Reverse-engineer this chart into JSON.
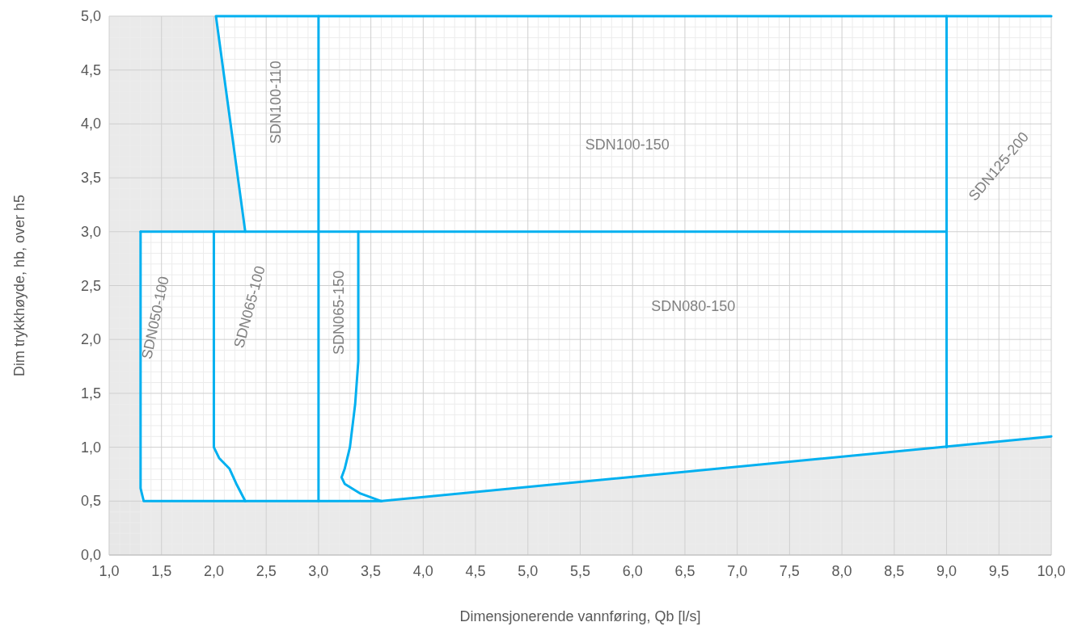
{
  "chart_data": {
    "type": "line",
    "xlabel": "Dimensjonerende vannføring, Qb [l/s]",
    "ylabel": "Dim trykkhøyde, hb, over h5",
    "xlim": [
      1,
      10
    ],
    "ylim": [
      0,
      5
    ],
    "xticks": [
      {
        "value": 1,
        "label": "1,0"
      },
      {
        "value": 1.5,
        "label": "1,5"
      },
      {
        "value": 2,
        "label": "2,0"
      },
      {
        "value": 2.5,
        "label": "2,5"
      },
      {
        "value": 3,
        "label": "3,0"
      },
      {
        "value": 3.5,
        "label": "3,5"
      },
      {
        "value": 4,
        "label": "4,0"
      },
      {
        "value": 4.5,
        "label": "4,5"
      },
      {
        "value": 5,
        "label": "5,0"
      },
      {
        "value": 5.5,
        "label": "5,5"
      },
      {
        "value": 6,
        "label": "6,0"
      },
      {
        "value": 6.5,
        "label": "6,5"
      },
      {
        "value": 7,
        "label": "7,0"
      },
      {
        "value": 7.5,
        "label": "7,5"
      },
      {
        "value": 8,
        "label": "8,0"
      },
      {
        "value": 8.5,
        "label": "8,5"
      },
      {
        "value": 9,
        "label": "9,0"
      },
      {
        "value": 9.5,
        "label": "9,5"
      },
      {
        "value": 10,
        "label": "10,0"
      }
    ],
    "yticks": [
      {
        "value": 0,
        "label": "0,0"
      },
      {
        "value": 0.5,
        "label": "0,5"
      },
      {
        "value": 1,
        "label": "1,0"
      },
      {
        "value": 1.5,
        "label": "1,5"
      },
      {
        "value": 2,
        "label": "2,0"
      },
      {
        "value": 2.5,
        "label": "2,5"
      },
      {
        "value": 3,
        "label": "3,0"
      },
      {
        "value": 3.5,
        "label": "3,5"
      },
      {
        "value": 4,
        "label": "4,0"
      },
      {
        "value": 4.5,
        "label": "4,5"
      },
      {
        "value": 5,
        "label": "5,0"
      }
    ],
    "grid": true,
    "marker": "none",
    "line_style": "solid",
    "bands": [
      {
        "axis": "x",
        "from": 1,
        "to": 1.3,
        "color": "#e6e6e6"
      }
    ],
    "series": [
      {
        "type": "area",
        "color": "#e6e6e6",
        "x": [
          1,
          3.6,
          10
        ],
        "values": [
          0.5,
          0.5,
          1.1
        ]
      },
      {
        "color": "#00b0f0",
        "x": [
          2.3,
          2.02,
          10
        ],
        "values": [
          3,
          5,
          5
        ]
      },
      {
        "color": "#00b0f0",
        "x": [
          1.3,
          9
        ],
        "values": [
          3,
          3
        ]
      },
      {
        "color": "#00b0f0",
        "x": [
          3,
          3
        ],
        "values": [
          0.5,
          5
        ]
      },
      {
        "color": "#00b0f0",
        "x": [
          9,
          9
        ],
        "values": [
          1,
          5
        ]
      },
      {
        "color": "#00b0f0",
        "x": [
          1.3,
          1.3,
          1.33,
          3.6
        ],
        "values": [
          3,
          0.62,
          0.5,
          0.5
        ]
      },
      {
        "color": "#00b0f0",
        "x": [
          2,
          2,
          2.05,
          2.15,
          2.22,
          2.3
        ],
        "values": [
          3,
          1,
          0.9,
          0.8,
          0.65,
          0.5
        ]
      },
      {
        "color": "#00b0f0",
        "x": [
          3.38,
          3.38,
          3.35,
          3.3,
          3.25,
          3.22,
          3.25,
          3.4,
          3.6,
          10
        ],
        "values": [
          3,
          1.8,
          1.4,
          1,
          0.8,
          0.72,
          0.66,
          0.57,
          0.5,
          1.1
        ]
      }
    ],
    "annotations": [
      "SDN100-110",
      "SDN100-150",
      "SDN125-200",
      "SDN050-100",
      "SDN065-100",
      "SDN065-150",
      "SDN080-150"
    ]
  }
}
